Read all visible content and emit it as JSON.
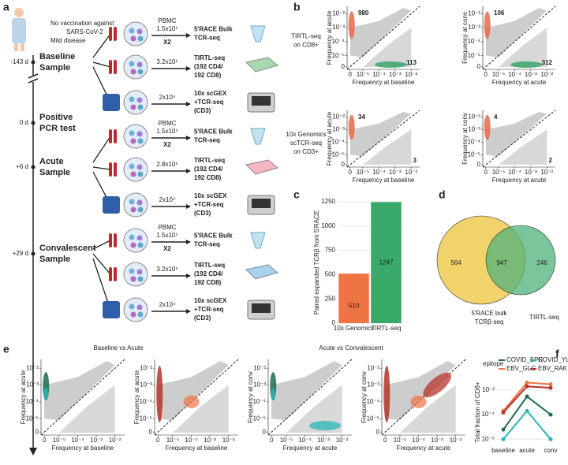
{
  "panel_a": {
    "label": "a",
    "patient": [
      "No vaccination against",
      "SARS-CoV-2",
      "Mild disease"
    ],
    "events": [
      {
        "day": "-143 d",
        "name": [
          "Baseline",
          "Sample"
        ],
        "color": "#3aaa35"
      },
      {
        "day": "0 d",
        "name": [
          "Positive",
          "PCR test"
        ],
        "color": "#222222"
      },
      {
        "day": "+6 d",
        "name": [
          "Acute",
          "Sample"
        ],
        "color": "#e0474c"
      },
      {
        "day": "+29 d",
        "name": [
          "Convalescent",
          "Sample"
        ],
        "color": "#1a8fd0"
      }
    ],
    "samples": [
      {
        "plate_color": "#a8d8b0",
        "rows": [
          {
            "input": "PBMC",
            "count": "1.5x10⁵",
            "rep": "X2",
            "method": [
              "5'RACE Bulk",
              "TCR-seq"
            ]
          },
          {
            "count": "3.2x10⁶",
            "method": [
              "TIRTL-seq"
            ],
            "detail": [
              {
                "text": "(192 CD4/",
                "color": "#e0559a"
              },
              {
                "text": "192 CD8)",
                "color": "#2a8fc0"
              }
            ]
          },
          {
            "count": "2x10⁴",
            "method": [
              "10x scGEX",
              "+TCR-seq"
            ],
            "detail": [
              {
                "text": "(CD3)",
                "color": "#8e44ad"
              }
            ]
          }
        ]
      },
      {
        "plate_color": "#f4b6c2",
        "rows": [
          {
            "input": "PBMC",
            "count": "1.5x10⁵",
            "rep": "X2",
            "method": [
              "5'RACE Bulk",
              "TCR-seq"
            ]
          },
          {
            "count": "2.8x10⁶",
            "method": [
              "TIRTL-seq"
            ],
            "detail": [
              {
                "text": "(192 CD4/",
                "color": "#e0559a"
              },
              {
                "text": "192 CD8)",
                "color": "#2a8fc0"
              }
            ]
          },
          {
            "count": "2x10⁴",
            "method": [
              "10x scGEX",
              "+TCR-seq"
            ],
            "detail": [
              {
                "text": "(CD3)",
                "color": "#8e44ad"
              }
            ]
          }
        ]
      },
      {
        "plate_color": "#a9d2ee",
        "rows": [
          {
            "input": "PBMC",
            "count": "1.5x10⁵",
            "rep": "X2",
            "method": [
              "5'RACE Bulk",
              "TCR-seq"
            ]
          },
          {
            "count": "3.2x10⁶",
            "method": [
              "TIRTL-seq"
            ],
            "detail": [
              {
                "text": "(192 CD4/",
                "color": "#e0559a"
              },
              {
                "text": "192 CD8)",
                "color": "#2a8fc0"
              }
            ]
          },
          {
            "count": "2x10⁴",
            "method": [
              "10x scGEX",
              "+TCR-seq"
            ],
            "detail": [
              {
                "text": "(CD3)",
                "color": "#8e44ad"
              }
            ]
          }
        ]
      }
    ]
  },
  "freq_ticks": [
    0,
    {
      "value": 1e-05,
      "label": "10⁻⁵"
    },
    {
      "value": 0.0001,
      "label": "10⁻⁴"
    },
    {
      "value": 0.001,
      "label": "10⁻³"
    },
    {
      "value": 0.01,
      "label": "10⁻²"
    }
  ],
  "panel_b": {
    "label": "b",
    "rows": [
      [
        "TIRTL-seq",
        "on CD8+"
      ],
      [
        "10x Genomics",
        "scTCR-seq",
        "on CD3+"
      ]
    ],
    "plots": [
      {
        "ylabel": "Frequency at acute",
        "xlabel": "Frequency at baseline",
        "up": "980",
        "down": "113"
      },
      {
        "ylabel": "Frequency at conv",
        "xlabel": "Frequency at acute",
        "up": "106",
        "down": "312"
      },
      {
        "ylabel": "Frequency at acute",
        "xlabel": "Frequency at baseline",
        "up": "34",
        "down": "3"
      },
      {
        "ylabel": "Frequency at conv",
        "xlabel": "Frequency at acute",
        "up": "4",
        "down": "2"
      }
    ],
    "up_color": "#e8674a",
    "down_color": "#3aa66a"
  },
  "panel_c": {
    "label": "c",
    "chart_data": {
      "type": "bar",
      "ylabel": "Paired expanded TCRβ from 5'RACE",
      "categories": [
        "10x Genomics",
        "TIRTL-seq"
      ],
      "values": [
        510,
        1247
      ],
      "colors": [
        "#ee7444",
        "#3aaa6a"
      ],
      "ylim": [
        0,
        1250
      ],
      "yticks": [
        0,
        250,
        500,
        750,
        1000,
        1250
      ]
    }
  },
  "panel_d": {
    "label": "d",
    "left_only": 564,
    "both": 947,
    "right_only": 246,
    "left_label": [
      "5'RACE bulk",
      "TCRβ-seq"
    ],
    "right_label": "TIRTL-seq"
  },
  "panel_e": {
    "label": "e",
    "titles": [
      "Baseline vs Acute",
      "Acute vs Convalescent"
    ],
    "plots": [
      {
        "ylabel": "Frequency at acute",
        "xlabel": "Frequency at baseline"
      },
      {
        "ylabel": "Frequency at acute",
        "xlabel": "Frequency at baseline"
      },
      {
        "ylabel": "Frequency at conv",
        "xlabel": "Frequency at acute"
      },
      {
        "ylabel": "Frequency at conv",
        "xlabel": "Frequency at acute"
      }
    ]
  },
  "panel_f": {
    "label": "f",
    "chart_data": {
      "type": "line",
      "legend_title": "epitope",
      "ylabel": "Total fraction of CD8+",
      "log_y": true,
      "categories": [
        "baseline",
        "acute",
        "conv"
      ],
      "series": [
        {
          "name": "COVID_SPR",
          "color": "#1e6b52",
          "values": [
            6e-06,
            0.003,
            0.0001
          ]
        },
        {
          "name": "COVID_YLQ",
          "color": "#2ab5b5",
          "values": [
            1e-06,
            0.0002,
            1e-06
          ]
        },
        {
          "name": "EBV_GLC",
          "color": "#ee7444",
          "values": [
            0.0002,
            0.04,
            0.03
          ]
        },
        {
          "name": "EBV_RAK",
          "color": "#b5342a",
          "values": [
            0.00015,
            0.02,
            0.015
          ]
        }
      ],
      "ylim": [
        5e-07,
        0.05
      ],
      "yticks": [
        {
          "value": 0.01,
          "label": "10⁻²"
        },
        {
          "value": 0.0001,
          "label": "10⁻⁴"
        },
        {
          "value": 1e-06,
          "label": "10⁻⁶"
        }
      ]
    }
  }
}
